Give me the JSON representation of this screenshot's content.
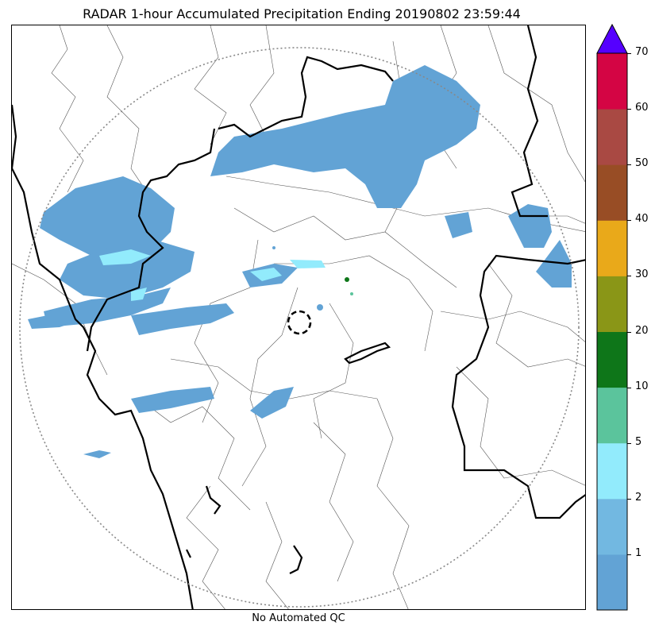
{
  "title": "RADAR 1-hour Accumulated Precipitation Ending 20190802 23:59:44",
  "footer": "No Automated QC",
  "colorbar": {
    "bins": [
      {
        "label": "",
        "color": "#62a3d5"
      },
      {
        "label": "1",
        "color": "#72b8e1"
      },
      {
        "label": "2",
        "color": "#92ebfc"
      },
      {
        "label": "5",
        "color": "#5bc49c"
      },
      {
        "label": "10",
        "color": "#0e7619"
      },
      {
        "label": "20",
        "color": "#8a9617"
      },
      {
        "label": "30",
        "color": "#e9a91a"
      },
      {
        "label": "40",
        "color": "#984d25"
      },
      {
        "label": "50",
        "color": "#a94943"
      },
      {
        "label": "60",
        "color": "#d40544"
      }
    ],
    "top_label": "70",
    "extend_color": "#5500ff"
  },
  "map_colors": {
    "light_rain": "#62a3d5",
    "moderate_rain": "#92ebfc",
    "heavy_rain": "#0e7619",
    "range_ring": "#888888",
    "coast": "#000000"
  }
}
